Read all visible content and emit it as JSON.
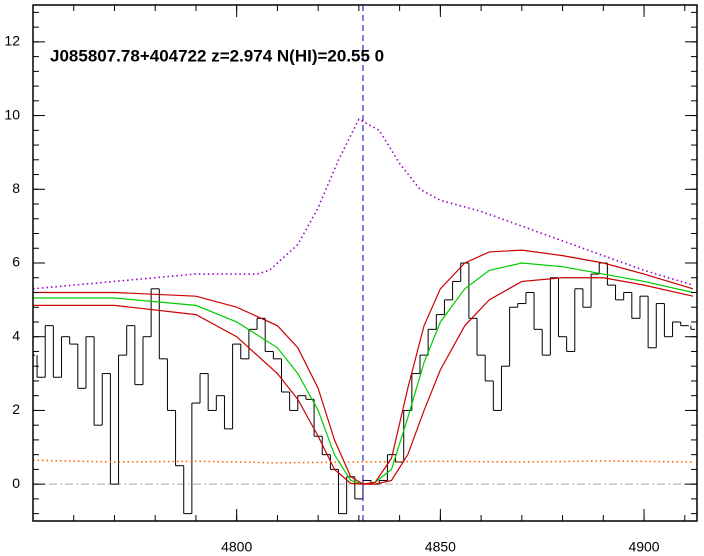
{
  "chart_data": {
    "type": "line",
    "title": "J085807.78+404722 z=2.974 N(HI)=20.55 0",
    "xlim": [
      4750,
      4913
    ],
    "ylim": [
      -1,
      13
    ],
    "xticks": [
      4800,
      4850,
      4900
    ],
    "yticks": [
      0,
      2,
      4,
      6,
      8,
      10,
      12
    ],
    "vlines": [
      {
        "value": 4831,
        "color": "#0000cc",
        "style": "dashed"
      }
    ],
    "hlines": [
      {
        "value": 0,
        "color": "#aaaaaa",
        "style": "dashdot"
      }
    ],
    "series": [
      {
        "color": "#000000",
        "style": "step",
        "x": [
          4750,
          4752,
          4754,
          4756,
          4758,
          4760,
          4762,
          4764,
          4766,
          4768,
          4770,
          4772,
          4774,
          4776,
          4778,
          4780,
          4782,
          4784,
          4786,
          4788,
          4790,
          4792,
          4794,
          4796,
          4798,
          4800,
          4802,
          4804,
          4806,
          4808,
          4810,
          4812,
          4814,
          4816,
          4818,
          4820,
          4822,
          4824,
          4826,
          4828,
          4830,
          4832,
          4834,
          4836,
          4838,
          4840,
          4842,
          4844,
          4846,
          4848,
          4850,
          4852,
          4854,
          4856,
          4858,
          4860,
          4862,
          4864,
          4866,
          4868,
          4870,
          4872,
          4874,
          4876,
          4878,
          4880,
          4882,
          4884,
          4886,
          4888,
          4890,
          4892,
          4894,
          4896,
          4898,
          4900,
          4902,
          4904,
          4906,
          4908,
          4910,
          4912
        ],
        "values": [
          3.5,
          2.9,
          4.3,
          2.9,
          4.0,
          3.8,
          2.6,
          4.0,
          1.6,
          3.0,
          0.0,
          3.5,
          4.3,
          2.7,
          4.0,
          5.3,
          3.4,
          2.0,
          0.5,
          -0.8,
          2.2,
          3.0,
          2.0,
          2.4,
          1.5,
          3.8,
          3.4,
          4.2,
          4.5,
          3.6,
          3.4,
          2.5,
          2.0,
          2.4,
          2.3,
          1.3,
          0.8,
          0.4,
          -0.8,
          0.2,
          -0.4,
          0.1,
          0.0,
          0.1,
          0.8,
          0.6,
          2.0,
          3.0,
          3.5,
          4.2,
          4.6,
          5.0,
          5.5,
          6.0,
          4.5,
          3.5,
          2.8,
          2.0,
          3.2,
          4.8,
          4.9,
          5.2,
          4.2,
          3.5,
          5.6,
          4.0,
          3.6,
          5.3,
          4.8,
          5.7,
          6.0,
          5.4,
          5.0,
          5.2,
          4.5,
          5.1,
          3.7,
          4.9,
          4.0,
          4.4,
          4.3,
          4.2
        ]
      },
      {
        "color": "#9900cc",
        "style": "dotted",
        "x": [
          4750,
          4760,
          4770,
          4780,
          4790,
          4800,
          4805,
          4808,
          4815,
          4820,
          4825,
          4830,
          4835,
          4840,
          4845,
          4850,
          4860,
          4870,
          4880,
          4890,
          4900,
          4912
        ],
        "values": [
          5.3,
          5.4,
          5.5,
          5.6,
          5.7,
          5.7,
          5.7,
          5.8,
          6.5,
          7.5,
          8.8,
          9.9,
          9.6,
          8.7,
          8.0,
          7.7,
          7.4,
          7.0,
          6.6,
          6.2,
          5.8,
          5.4
        ]
      },
      {
        "color": "#ff6600",
        "style": "dotted",
        "x": [
          4750,
          4770,
          4790,
          4810,
          4830,
          4850,
          4870,
          4890,
          4912
        ],
        "values": [
          0.65,
          0.6,
          0.62,
          0.58,
          0.6,
          0.62,
          0.6,
          0.63,
          0.6
        ]
      },
      {
        "color": "#00cc00",
        "style": "solid",
        "x": [
          4750,
          4770,
          4790,
          4800,
          4810,
          4815,
          4820,
          4824,
          4828,
          4831,
          4834,
          4838,
          4842,
          4846,
          4850,
          4856,
          4862,
          4870,
          4880,
          4890,
          4900,
          4912
        ],
        "values": [
          5.05,
          5.05,
          4.85,
          4.4,
          3.7,
          3.0,
          2.0,
          0.8,
          0.1,
          0.0,
          0.05,
          0.4,
          1.8,
          3.3,
          4.4,
          5.3,
          5.8,
          6.0,
          5.9,
          5.7,
          5.5,
          5.2
        ]
      },
      {
        "color": "#cc0000",
        "style": "solid",
        "x": [
          4750,
          4770,
          4790,
          4800,
          4810,
          4815,
          4820,
          4824,
          4828,
          4831,
          4834,
          4838,
          4842,
          4846,
          4850,
          4856,
          4862,
          4870,
          4880,
          4890,
          4900,
          4912
        ],
        "values": [
          5.2,
          5.2,
          5.1,
          4.8,
          4.3,
          3.7,
          2.6,
          1.2,
          0.2,
          0.0,
          0.05,
          0.7,
          2.6,
          4.3,
          5.3,
          6.0,
          6.3,
          6.35,
          6.2,
          6.0,
          5.7,
          5.3
        ]
      },
      {
        "color": "#cc0000",
        "style": "solid",
        "x": [
          4750,
          4770,
          4790,
          4800,
          4810,
          4815,
          4820,
          4824,
          4828,
          4831,
          4834,
          4838,
          4842,
          4846,
          4850,
          4856,
          4862,
          4870,
          4880,
          4890,
          4900,
          4912
        ],
        "values": [
          4.85,
          4.85,
          4.6,
          4.0,
          3.0,
          2.3,
          1.3,
          0.4,
          0.02,
          0.0,
          0.0,
          0.1,
          0.8,
          2.0,
          3.1,
          4.3,
          5.0,
          5.5,
          5.6,
          5.6,
          5.4,
          5.1
        ]
      }
    ]
  }
}
